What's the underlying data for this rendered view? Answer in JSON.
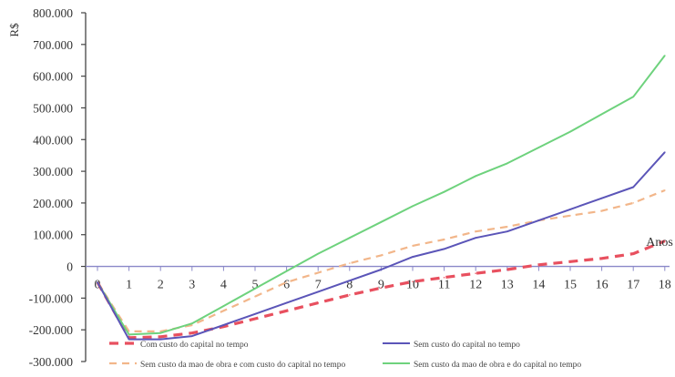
{
  "chart_data": {
    "type": "line",
    "title": "",
    "xlabel": "Anos",
    "ylabel": "R$",
    "x": [
      0,
      1,
      2,
      3,
      4,
      5,
      6,
      7,
      8,
      9,
      10,
      11,
      12,
      13,
      14,
      15,
      16,
      17,
      18
    ],
    "x_tick_labels": [
      "0",
      "1",
      "2",
      "3",
      "4",
      "5",
      "6",
      "7",
      "8",
      "9",
      "10",
      "11",
      "12",
      "13",
      "14",
      "15",
      "16",
      "17",
      "18"
    ],
    "y_tick_values": [
      -300000,
      -200000,
      -100000,
      0,
      100000,
      200000,
      300000,
      400000,
      500000,
      600000,
      700000,
      800000
    ],
    "y_tick_labels": [
      "-300.000",
      "-200.000",
      "-100.000",
      "0",
      "100.000",
      "200.000",
      "300.000",
      "400.000",
      "500.000",
      "600.000",
      "700.000",
      "800.000"
    ],
    "ylim": [
      -300000,
      800000
    ],
    "xlim": [
      0,
      18
    ],
    "grid": false,
    "legend_position": "bottom",
    "series": [
      {
        "name": "Com custo do capital no tempo",
        "color": "#e8505f",
        "style": "dashed-thick",
        "values": [
          -50000,
          -225000,
          -222000,
          -210000,
          -190000,
          -165000,
          -140000,
          -115000,
          -90000,
          -68000,
          -48000,
          -35000,
          -22000,
          -10000,
          5000,
          15000,
          25000,
          40000,
          80000
        ]
      },
      {
        "name": "Sem custo do capital no tempo",
        "color": "#5b55b8",
        "style": "solid",
        "values": [
          -50000,
          -230000,
          -230000,
          -220000,
          -185000,
          -150000,
          -115000,
          -80000,
          -45000,
          -10000,
          30000,
          55000,
          90000,
          110000,
          145000,
          180000,
          215000,
          250000,
          360000
        ]
      },
      {
        "name": "Sem custo da mao de obra e com custo do capital no tempo",
        "color": "#f2b68a",
        "style": "dashed",
        "values": [
          -50000,
          -205000,
          -205000,
          -185000,
          -140000,
          -95000,
          -50000,
          -20000,
          10000,
          35000,
          65000,
          85000,
          110000,
          125000,
          145000,
          160000,
          175000,
          200000,
          240000
        ]
      },
      {
        "name": "Sem custo da mao de obra e do capital no tempo",
        "color": "#6ed27d",
        "style": "solid",
        "values": [
          -50000,
          -215000,
          -210000,
          -180000,
          -125000,
          -70000,
          -15000,
          40000,
          90000,
          140000,
          190000,
          235000,
          285000,
          325000,
          375000,
          425000,
          480000,
          535000,
          665000
        ]
      }
    ]
  }
}
